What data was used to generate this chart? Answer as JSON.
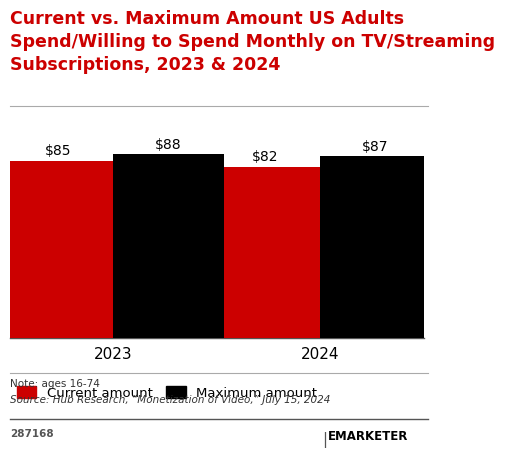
{
  "title": "Current vs. Maximum Amount US Adults\nSpend/Willing to Spend Monthly on TV/Streaming\nSubscriptions, 2023 & 2024",
  "title_color": "#cc0000",
  "title_fontsize": 12.5,
  "groups": [
    "2023",
    "2024"
  ],
  "series": [
    {
      "label": "Current amount",
      "color": "#cc0000",
      "values": [
        85,
        82
      ]
    },
    {
      "label": "Maximum amount",
      "color": "#000000",
      "values": [
        88,
        87
      ]
    }
  ],
  "bar_labels_2023": [
    "$85",
    "$88"
  ],
  "bar_labels_2024": [
    "$82",
    "$87"
  ],
  "ylim": [
    0,
    110
  ],
  "bar_width": 0.32,
  "group_positions": [
    0.25,
    0.85
  ],
  "note_line1": "Note: ages 16-74",
  "note_line2": "Source: Hub Research, “Monetization of Video,” July 15, 2024",
  "footnote": "287168",
  "background_color": "#ffffff",
  "legend_fontsize": 9.5,
  "bar_label_fontsize": 10
}
